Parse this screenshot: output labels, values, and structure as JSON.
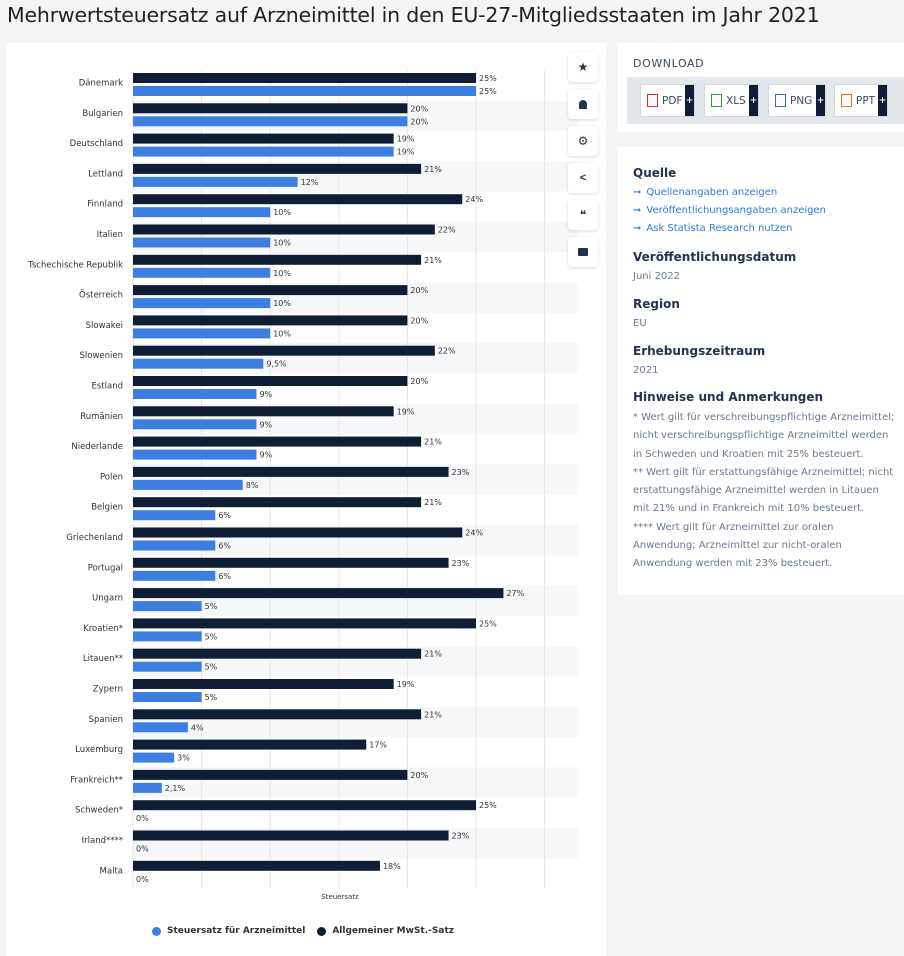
{
  "page": {
    "title": "Mehrwertsteuersatz auf Arzneimittel in den EU-27-Mitgliedsstaaten im Jahr 2021"
  },
  "colors": {
    "general": "#0f1d35",
    "medicine": "#3c7fe0",
    "grid": "#e6e6e6",
    "stripe": "#f6f7f9"
  },
  "tools": [
    {
      "icon": "star-icon",
      "glyph": "★"
    },
    {
      "icon": "bell-icon",
      "glyph": "🔔"
    },
    {
      "icon": "gear-icon",
      "glyph": "⚙"
    },
    {
      "icon": "share-icon",
      "glyph": "<"
    },
    {
      "icon": "quote-icon",
      "glyph": "❝"
    },
    {
      "icon": "print-icon",
      "glyph": "🖶"
    }
  ],
  "download": {
    "title": "DOWNLOAD",
    "buttons": [
      {
        "label": "PDF",
        "icon": "pdf-file-icon",
        "color": "#d32f2f"
      },
      {
        "label": "XLS",
        "icon": "xls-file-icon",
        "color": "#2e9b45"
      },
      {
        "label": "PNG",
        "icon": "png-file-icon",
        "color": "#3a6fb5"
      },
      {
        "label": "PPT",
        "icon": "ppt-file-icon",
        "color": "#e8731f"
      }
    ]
  },
  "info": {
    "source_title": "Quelle",
    "links": [
      "Quellenangaben anzeigen",
      "Veröffentlichungsangaben anzeigen",
      "Ask Statista Research nutzen"
    ],
    "pubdate_title": "Veröffentlichungsdatum",
    "pubdate_value": "Juni 2022",
    "region_title": "Region",
    "region_value": "EU",
    "period_title": "Erhebungszeitraum",
    "period_value": "2021",
    "notes_title": "Hinweise und Anmerkungen",
    "notes": [
      "* Wert gilt für verschreibungspflichtige Arzneimittel; nicht verschreibungspflichtige Arzneimittel werden in Schweden und Kroatien mit 25% besteuert.",
      "** Wert gilt für erstattungsfähige Arzneimittel; nicht erstattungsfähige Arzneimittel werden in Litauen mit 21% und in Frankreich mit 10% besteuert.",
      "**** Wert gilt für Arzneimittel zur oralen Anwendung; Arzneimittel zur nicht-oralen Anwendung werden mit 23% besteuert."
    ]
  },
  "chart_data": {
    "type": "bar",
    "orientation": "horizontal",
    "xlabel": "Steuersatz",
    "xlim": [
      0,
      30
    ],
    "grid": true,
    "legend_position": "bottom",
    "categories": [
      "Dänemark",
      "Bulgarien",
      "Deutschland",
      "Lettland",
      "Finnland",
      "Italien",
      "Tschechische Republik",
      "Österreich",
      "Slowakei",
      "Slowenien",
      "Estland",
      "Rumänien",
      "Niederlande",
      "Polen",
      "Belgien",
      "Griechenland",
      "Portugal",
      "Ungarn",
      "Kroatien*",
      "Litauen**",
      "Zypern",
      "Spanien",
      "Luxemburg",
      "Frankreich**",
      "Schweden*",
      "Irland****",
      "Malta"
    ],
    "series": [
      {
        "name": "Allgemeiner MwSt.-Satz",
        "values": [
          25,
          20,
          19,
          21,
          24,
          22,
          21,
          20,
          20,
          22,
          20,
          19,
          21,
          23,
          21,
          24,
          23,
          27,
          25,
          21,
          19,
          21,
          17,
          20,
          25,
          23,
          18
        ],
        "labels": [
          "25%",
          "20%",
          "19%",
          "21%",
          "24%",
          "22%",
          "21%",
          "20%",
          "20%",
          "22%",
          "20%",
          "19%",
          "21%",
          "23%",
          "21%",
          "24%",
          "23%",
          "27%",
          "25%",
          "21%",
          "19%",
          "21%",
          "17%",
          "20%",
          "25%",
          "23%",
          "18%"
        ]
      },
      {
        "name": "Steuersatz für Arzneimittel",
        "values": [
          25,
          20,
          19,
          12,
          10,
          10,
          10,
          10,
          10,
          9.5,
          9,
          9,
          9,
          8,
          6,
          6,
          6,
          5,
          5,
          5,
          5,
          4,
          3,
          2.1,
          0,
          0,
          0
        ],
        "labels": [
          "25%",
          "20%",
          "19%",
          "12%",
          "10%",
          "10%",
          "10%",
          "10%",
          "10%",
          "9,5%",
          "9%",
          "9%",
          "9%",
          "8%",
          "6%",
          "6%",
          "6%",
          "5%",
          "5%",
          "5%",
          "5%",
          "4%",
          "3%",
          "2,1%",
          "0%",
          "0%",
          "0%"
        ]
      }
    ],
    "legend": [
      "Steuersatz für Arzneimittel",
      "Allgemeiner MwSt.-Satz"
    ]
  }
}
